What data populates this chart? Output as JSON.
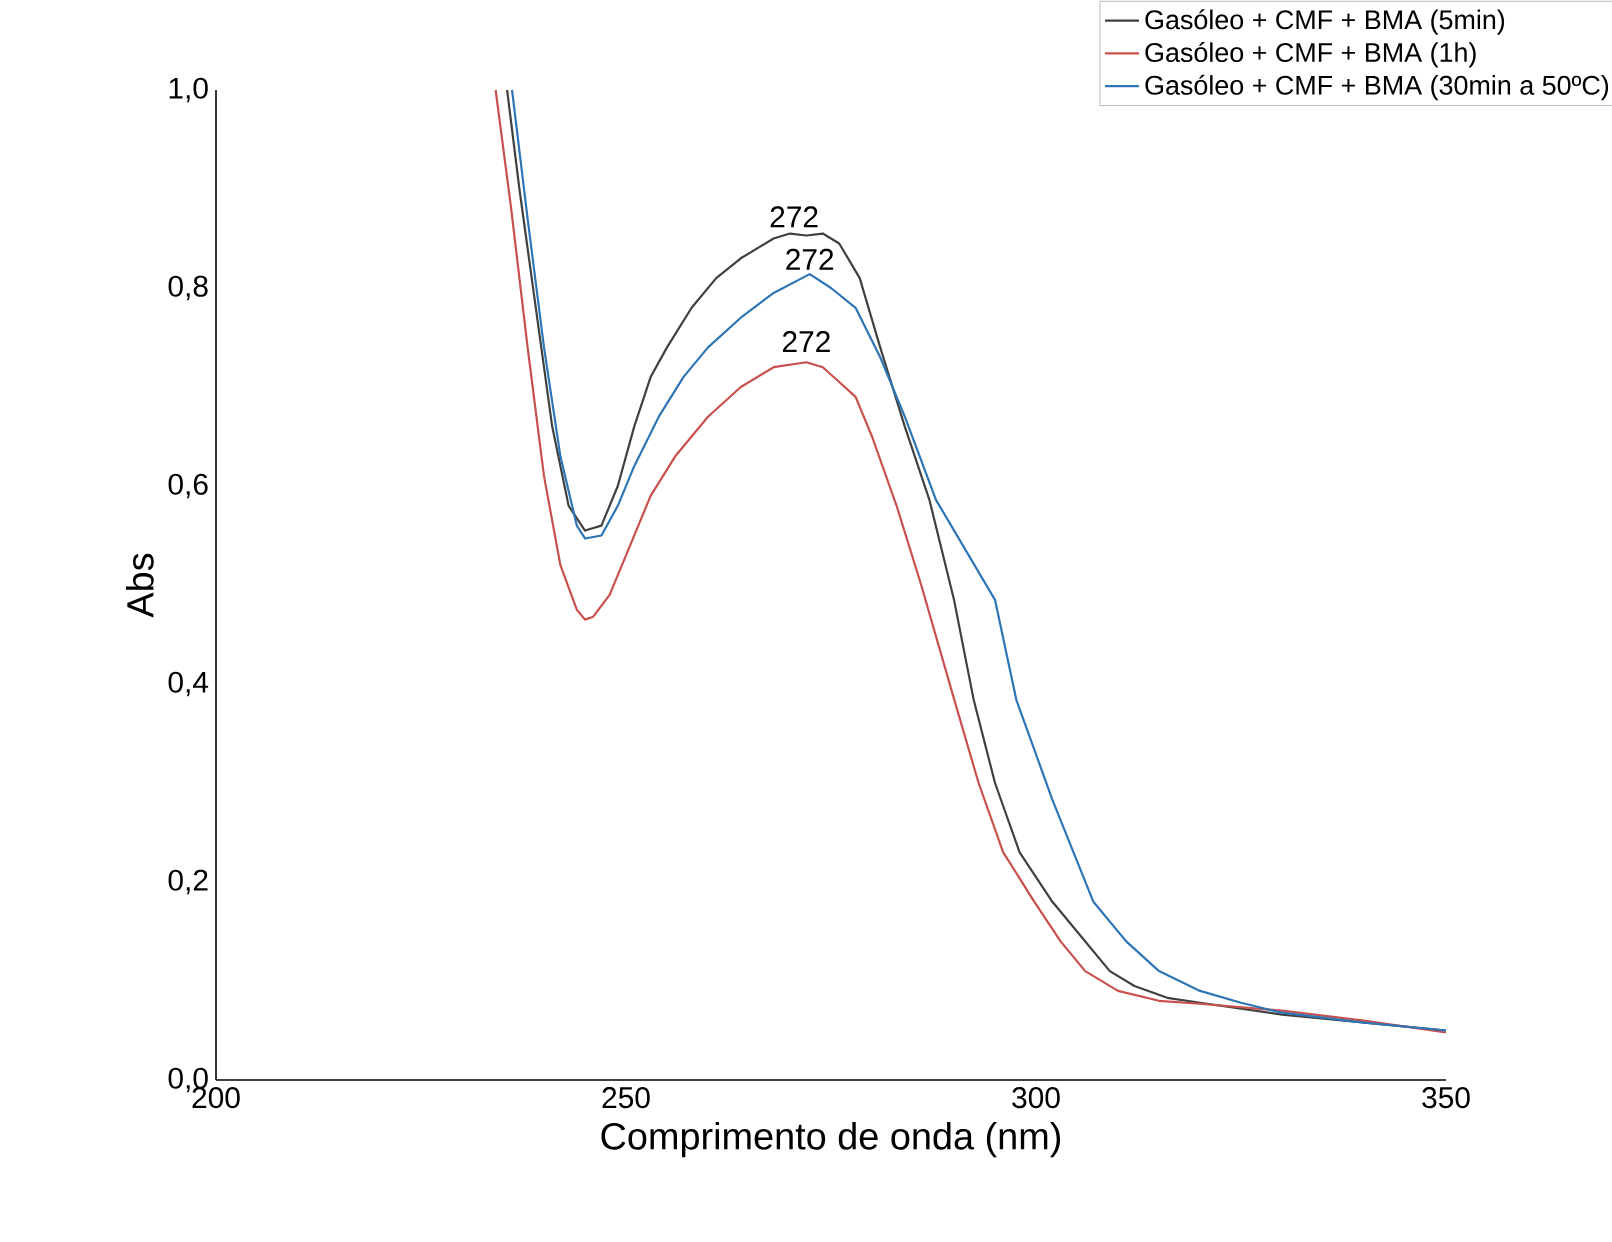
{
  "chart_data": {
    "type": "line",
    "xlabel": "Comprimento de onda (nm)",
    "ylabel": "Abs",
    "xlim": [
      200,
      350
    ],
    "ylim": [
      0,
      1
    ],
    "xticks": [
      200,
      250,
      300,
      350
    ],
    "yticks": [
      {
        "value": 0,
        "label": "0,0"
      },
      {
        "value": 0.2,
        "label": "0,2"
      },
      {
        "value": 0.4,
        "label": "0,4"
      },
      {
        "value": 0.6,
        "label": "0,6"
      },
      {
        "value": 0.8,
        "label": "0,8"
      },
      {
        "value": 1,
        "label": "1,0"
      }
    ],
    "grid": false,
    "legend": "top right",
    "marker": "none",
    "line_style": "solid",
    "series": [
      {
        "name": "Gasóleo + CMF + BMA (5min)",
        "color": "#404040",
        "x": [
          235.5,
          237,
          239,
          241,
          243,
          245,
          247,
          249,
          251,
          253,
          255,
          258,
          261,
          264,
          268,
          270,
          272,
          274,
          276,
          278.5,
          281,
          284,
          287,
          290,
          292.4,
          295,
          298,
          302,
          305,
          309,
          312,
          316,
          320,
          330,
          340,
          350
        ],
        "values": [
          1.0,
          0.9,
          0.78,
          0.66,
          0.58,
          0.555,
          0.56,
          0.6,
          0.66,
          0.71,
          0.74,
          0.78,
          0.81,
          0.83,
          0.85,
          0.855,
          0.853,
          0.855,
          0.845,
          0.81,
          0.74,
          0.66,
          0.586,
          0.485,
          0.384,
          0.3,
          0.23,
          0.18,
          0.15,
          0.11,
          0.095,
          0.083,
          0.078,
          0.066,
          0.058,
          0.05
        ]
      },
      {
        "name": "Gasóleo + CMF + BMA (1h)",
        "color": "#c8504d",
        "x": [
          234.1,
          236,
          238,
          240,
          242,
          244,
          245,
          246,
          248,
          250,
          253,
          256,
          260,
          264,
          268,
          272,
          274,
          276,
          278,
          280,
          283,
          286,
          290,
          293,
          296,
          299.8,
          303,
          306,
          310,
          315,
          320,
          330,
          340,
          350
        ],
        "values": [
          1.0,
          0.88,
          0.74,
          0.61,
          0.52,
          0.475,
          0.465,
          0.468,
          0.49,
          0.53,
          0.59,
          0.63,
          0.67,
          0.7,
          0.72,
          0.725,
          0.72,
          0.705,
          0.69,
          0.65,
          0.58,
          0.5,
          0.385,
          0.3,
          0.23,
          0.18,
          0.14,
          0.11,
          0.09,
          0.08,
          0.077,
          0.07,
          0.06,
          0.048
        ]
      },
      {
        "name": "Gasóleo + CMF + BMA (30min a 50ºC)",
        "color": "#2e75b6",
        "x": [
          236.1,
          238,
          240,
          242,
          244,
          245,
          247,
          249,
          251,
          254,
          257,
          260,
          264,
          268,
          272.4,
          275,
          278,
          281,
          284,
          287.8,
          295,
          297.6,
          302,
          307,
          311,
          315,
          320,
          325,
          330,
          340,
          350
        ],
        "values": [
          1.0,
          0.87,
          0.74,
          0.63,
          0.56,
          0.547,
          0.55,
          0.58,
          0.62,
          0.67,
          0.71,
          0.74,
          0.77,
          0.795,
          0.814,
          0.8,
          0.78,
          0.73,
          0.67,
          0.586,
          0.485,
          0.384,
          0.283,
          0.18,
          0.14,
          0.11,
          0.09,
          0.078,
          0.068,
          0.058,
          0.05
        ]
      }
    ],
    "annotations": [
      {
        "text": "272",
        "x": 270.5,
        "y": 0.857
      },
      {
        "text": "272",
        "x": 272.4,
        "y": 0.814
      },
      {
        "text": "272",
        "x": 272,
        "y": 0.731
      }
    ]
  }
}
